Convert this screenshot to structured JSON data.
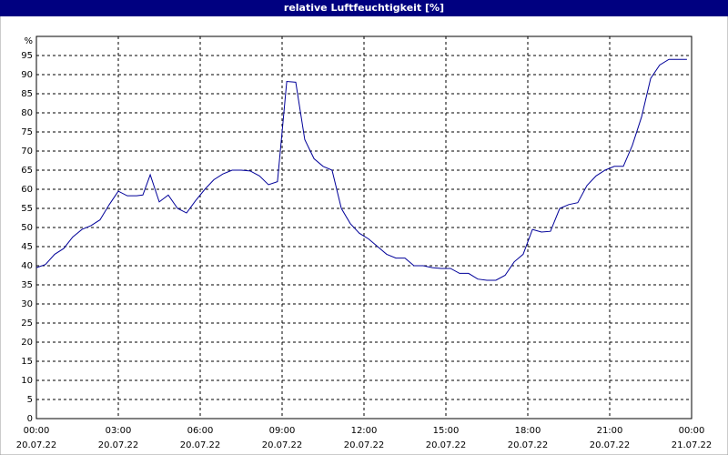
{
  "chart_data": {
    "type": "line",
    "title": "relative Luftfeuchtigkeit [%]",
    "y_label": "%",
    "x": [
      0,
      0.33,
      0.67,
      1.0,
      1.33,
      1.67,
      2.0,
      2.33,
      2.67,
      3.0,
      3.33,
      3.67,
      3.9,
      4.17,
      4.5,
      4.83,
      5.17,
      5.5,
      5.83,
      6.17,
      6.5,
      6.83,
      7.17,
      7.5,
      7.83,
      8.17,
      8.5,
      8.83,
      9.0,
      9.17,
      9.5,
      9.83,
      10.17,
      10.5,
      10.83,
      11.17,
      11.5,
      11.83,
      12.17,
      12.5,
      12.83,
      13.17,
      13.5,
      13.83,
      14.17,
      14.5,
      14.83,
      15.17,
      15.5,
      15.83,
      16.17,
      16.5,
      16.83,
      17.17,
      17.5,
      17.83,
      18.17,
      18.5,
      18.83,
      19.17,
      19.5,
      19.83,
      20.17,
      20.5,
      20.83,
      21.17,
      21.5,
      21.83,
      22.17,
      22.5,
      22.83,
      23.17,
      23.5,
      23.83
    ],
    "series": [
      {
        "name": "relative Luftfeuchtigkeit",
        "color": "#000099",
        "values": [
          39.5,
          40.3,
          43,
          44.5,
          47.5,
          49.5,
          50.5,
          52,
          56,
          59.5,
          58.3,
          58.3,
          58.5,
          63.8,
          56.7,
          58.5,
          55,
          53.8,
          57,
          60,
          62.5,
          64,
          65,
          65,
          64.8,
          63.5,
          61.2,
          62,
          75,
          88.2,
          88,
          73,
          68,
          66,
          65,
          55,
          51,
          48.5,
          47,
          45,
          43,
          42,
          42,
          40,
          40,
          39.5,
          39.3,
          39.3,
          38,
          38,
          36.5,
          36.2,
          36.2,
          37.5,
          41,
          43,
          49.5,
          48.8,
          49,
          55,
          56,
          56.5,
          61,
          63.5,
          65,
          66,
          66,
          71.5,
          79,
          89,
          92.5,
          94,
          94,
          94
        ]
      }
    ],
    "xlim": [
      0,
      24
    ],
    "xticks": [
      {
        "value": 0,
        "label": "00:00"
      },
      {
        "value": 3,
        "label": "03:00"
      },
      {
        "value": 6,
        "label": "06:00"
      },
      {
        "value": 9,
        "label": "09:00"
      },
      {
        "value": 12,
        "label": "12:00"
      },
      {
        "value": 15,
        "label": "15:00"
      },
      {
        "value": 18,
        "label": "18:00"
      },
      {
        "value": 21,
        "label": "21:00"
      },
      {
        "value": 24,
        "label": "00:00"
      }
    ],
    "xtick_dates": [
      "20.07.22",
      "20.07.22",
      "20.07.22",
      "20.07.22",
      "20.07.22",
      "20.07.22",
      "20.07.22",
      "20.07.22",
      "21.07.22"
    ],
    "ylim": [
      0,
      100
    ],
    "yticks": [
      0,
      5,
      10,
      15,
      20,
      25,
      30,
      35,
      40,
      45,
      50,
      55,
      60,
      65,
      70,
      75,
      80,
      85,
      90,
      95
    ],
    "grid": true
  }
}
